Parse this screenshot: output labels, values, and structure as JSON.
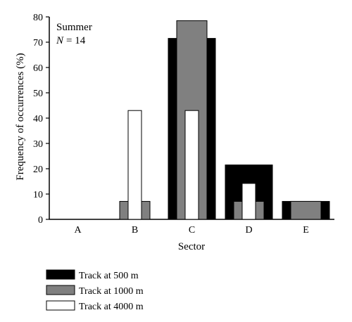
{
  "chart_data": {
    "type": "bar",
    "categories": [
      "A",
      "B",
      "C",
      "D",
      "E"
    ],
    "series": [
      {
        "name": "Track at 500 m",
        "color": "#000000",
        "values": [
          0,
          0,
          71.5,
          21.5,
          7.1
        ]
      },
      {
        "name": "Track at 1000 m",
        "color": "#808080",
        "values": [
          0,
          7.1,
          78.5,
          7.1,
          7.1
        ]
      },
      {
        "name": "Track at 4000 m",
        "color": "#ffffff",
        "values": [
          0,
          43,
          43,
          14.2,
          0
        ]
      }
    ],
    "yticks": [
      0,
      10,
      20,
      30,
      40,
      50,
      60,
      70,
      80
    ],
    "ylim": [
      0,
      80
    ],
    "xlabel": "Sector",
    "ylabel": "Frequency of occurrences (%)",
    "annotation": {
      "line1": "Summer",
      "n_symbol": "N",
      "n_value": "= 14"
    },
    "grid": false,
    "legend_position": "bottom-left"
  }
}
